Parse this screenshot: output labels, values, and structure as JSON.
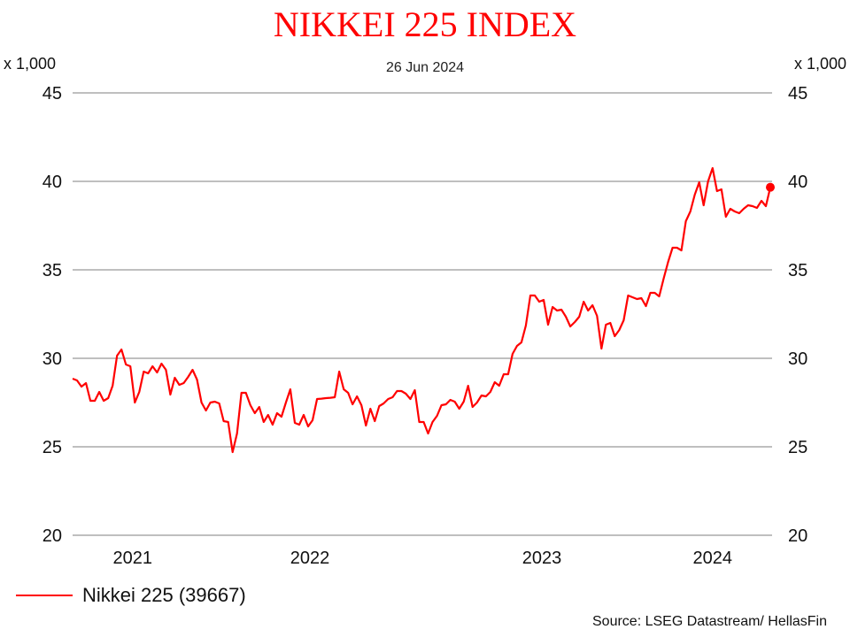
{
  "chart_data": {
    "type": "line",
    "title": "NIKKEI 225 INDEX",
    "subtitle": "26 Jun 2024",
    "ylabel_left": "x 1,000",
    "ylabel_right": "x 1,000",
    "ylim": [
      20,
      45
    ],
    "yticks": [
      "20",
      "25",
      "30",
      "35",
      "40",
      "45"
    ],
    "grid": true,
    "x_tick_labels": [
      {
        "label": "2021",
        "index": 13.5
      },
      {
        "label": "2022",
        "index": 53.4
      },
      {
        "label": "2023",
        "index": 105.6
      },
      {
        "label": "2024",
        "index": 144
      }
    ],
    "series": [
      {
        "name": "Nikkei 225 (39667)",
        "color": "#ff0000",
        "values": [
          28.85,
          28.75,
          28.4,
          28.6,
          27.6,
          27.6,
          28.1,
          27.6,
          27.75,
          28.45,
          30.15,
          30.5,
          29.65,
          29.55,
          27.5,
          28.1,
          29.25,
          29.15,
          29.55,
          29.2,
          29.7,
          29.35,
          27.95,
          28.9,
          28.5,
          28.6,
          28.95,
          29.35,
          28.8,
          27.5,
          27.05,
          27.5,
          27.55,
          27.45,
          26.45,
          26.4,
          24.7,
          25.75,
          28.05,
          28.05,
          27.35,
          26.9,
          27.25,
          26.4,
          26.8,
          26.25,
          26.9,
          26.7,
          27.5,
          28.25,
          26.35,
          26.25,
          26.8,
          26.15,
          26.5,
          27.7,
          27.72,
          27.75,
          27.77,
          27.8,
          29.25,
          28.25,
          28.05,
          27.4,
          27.85,
          27.35,
          26.2,
          27.15,
          26.45,
          27.3,
          27.45,
          27.7,
          27.8,
          28.15,
          28.15,
          28.0,
          27.7,
          28.2,
          26.4,
          26.4,
          25.75,
          26.4,
          26.75,
          27.35,
          27.4,
          27.65,
          27.55,
          27.15,
          27.55,
          28.45,
          27.25,
          27.5,
          27.9,
          27.85,
          28.1,
          28.65,
          28.45,
          29.1,
          29.1,
          30.25,
          30.7,
          30.9,
          31.85,
          33.55,
          33.55,
          33.2,
          33.3,
          31.9,
          32.9,
          32.7,
          32.75,
          32.35,
          31.8,
          32.05,
          32.35,
          33.2,
          32.7,
          33.0,
          32.4,
          30.55,
          31.9,
          32.0,
          31.25,
          31.6,
          32.15,
          33.55,
          33.45,
          33.35,
          33.4,
          32.95,
          33.7,
          33.7,
          33.5,
          34.5,
          35.45,
          36.25,
          36.25,
          36.1,
          37.75,
          38.3,
          39.25,
          39.95,
          38.65,
          40.0,
          40.75,
          39.45,
          39.55,
          38.0,
          38.45,
          38.3,
          38.2,
          38.45,
          38.65,
          38.6,
          38.5,
          38.9,
          38.6,
          39.667
        ]
      }
    ],
    "legend_position": "bottom-left",
    "source": "Source: LSEG Datastream/ HellasFin"
  }
}
